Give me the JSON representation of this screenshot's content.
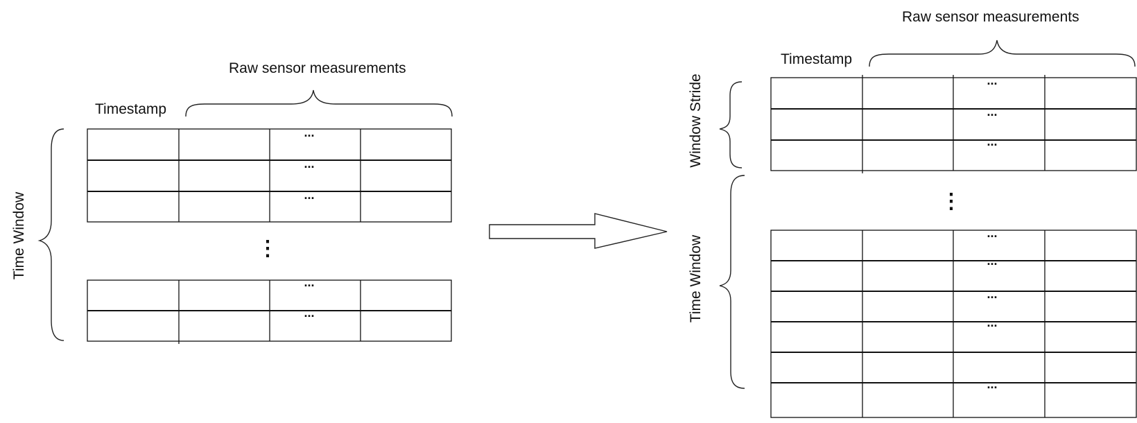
{
  "left_panel": {
    "header_label": "Raw sensor measurements",
    "timestamp_label": "Timestamp",
    "window_label": "Time Window",
    "ellipsis": "...",
    "vertical_ellipsis": "⋮"
  },
  "right_panel": {
    "header_label": "Raw sensor measurements",
    "timestamp_label": "Timestamp",
    "stride_label": "Window Stride",
    "window_label": "Time Window",
    "ellipsis": "...",
    "vertical_ellipsis": "⋮"
  }
}
